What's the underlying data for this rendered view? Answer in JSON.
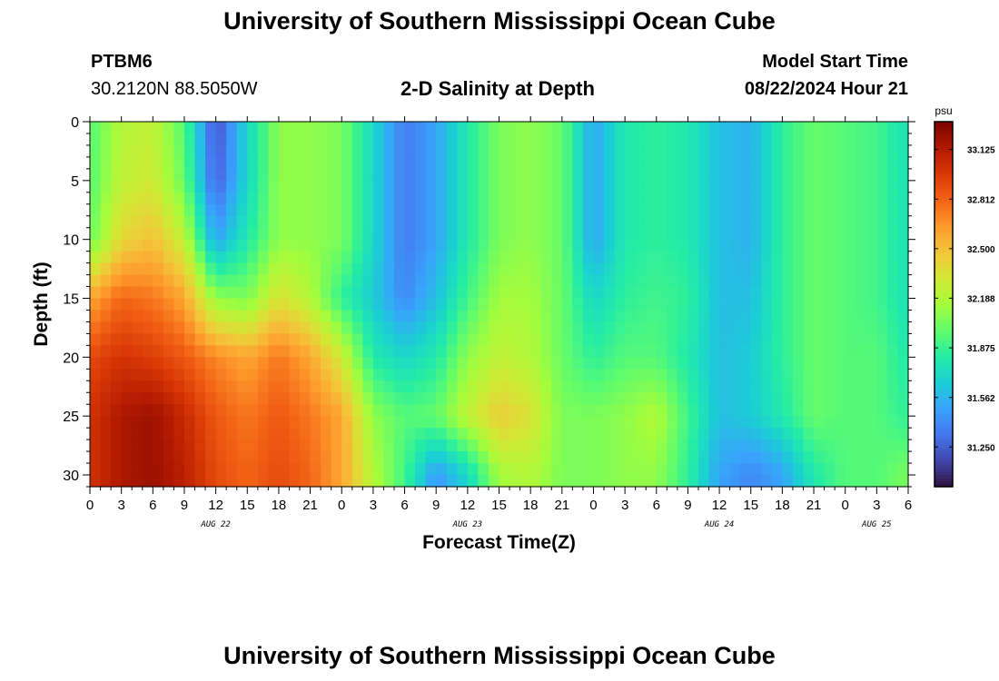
{
  "page": {
    "title_top": "University of Southern Mississippi Ocean Cube",
    "title_bottom": "University of Southern Mississippi Ocean Cube",
    "station_id": "PTBM6",
    "station_coords": "30.2120N  88.5050W",
    "plot_title": "2-D Salinity at Depth",
    "model_start_label": "Model Start Time",
    "model_start_value": "08/22/2024 Hour 21"
  },
  "chart_data": {
    "type": "heatmap",
    "title": "2-D Salinity at Depth",
    "xlabel": "Forecast Time(Z)",
    "ylabel": "Depth (ft)",
    "colorbar_unit": "psu",
    "x_range_hours_from_aug22_00z": [
      0,
      78
    ],
    "y_range_ft": [
      0,
      31
    ],
    "y_reversed": true,
    "y_ticks": [
      0,
      5,
      10,
      15,
      20,
      25,
      30
    ],
    "x_tick_labels": [
      "0",
      "3",
      "6",
      "9",
      "12",
      "15",
      "18",
      "21",
      "0",
      "3",
      "6",
      "9",
      "12",
      "15",
      "18",
      "21",
      "0",
      "3",
      "6",
      "9",
      "12",
      "15",
      "18",
      "21",
      "0",
      "3",
      "6"
    ],
    "date_labels": [
      {
        "text": "AUG 22",
        "at_hour": 12
      },
      {
        "text": "AUG 23",
        "at_hour": 36
      },
      {
        "text": "AUG 24",
        "at_hour": 60
      },
      {
        "text": "AUG 25",
        "at_hour": 75
      }
    ],
    "colorbar_range": [
      31.0,
      33.3
    ],
    "colorbar_ticks": [
      31.25,
      31.562,
      31.875,
      32.188,
      32.5,
      32.812,
      33.125
    ],
    "colorbar_tick_labels": [
      "31.250",
      "31.562",
      "31.875",
      "32.188",
      "32.500",
      "32.812",
      "33.125"
    ],
    "colormap": [
      "#30123b",
      "#4145ab",
      "#4675ed",
      "#39a2fc",
      "#1bcfd4",
      "#24eca6",
      "#61fc6c",
      "#a4fc3b",
      "#d1e834",
      "#f3c63a",
      "#fe9b2d",
      "#f36315",
      "#d93806",
      "#b11901",
      "#7a0402"
    ],
    "row_depths_ft": [
      0,
      5,
      10,
      15,
      20,
      25,
      30
    ],
    "column_hours": [
      0,
      3,
      6,
      9,
      12,
      15,
      18,
      21,
      24,
      27,
      30,
      33,
      36,
      39,
      42,
      45,
      48,
      51,
      54,
      57,
      60,
      63,
      66,
      69,
      72,
      75,
      78
    ],
    "salinity_psu": [
      [
        31.95,
        32.2,
        32.25,
        31.95,
        31.2,
        31.7,
        32.1,
        32.1,
        32.05,
        31.7,
        31.35,
        31.5,
        31.8,
        32.05,
        32.1,
        32.0,
        31.5,
        31.8,
        31.85,
        31.8,
        31.6,
        31.55,
        31.85,
        32.0,
        31.95,
        31.9,
        31.75
      ],
      [
        31.95,
        32.25,
        32.3,
        32.0,
        31.25,
        31.7,
        32.1,
        32.1,
        32.05,
        31.7,
        31.35,
        31.5,
        31.8,
        32.05,
        32.1,
        32.0,
        31.5,
        31.8,
        31.85,
        31.8,
        31.6,
        31.55,
        31.85,
        32.0,
        31.95,
        31.9,
        31.75
      ],
      [
        32.0,
        32.4,
        32.5,
        32.25,
        31.5,
        31.8,
        32.1,
        32.1,
        32.05,
        31.7,
        31.35,
        31.5,
        31.8,
        32.05,
        32.1,
        32.0,
        31.5,
        31.8,
        31.85,
        31.8,
        31.6,
        31.55,
        31.85,
        32.0,
        31.95,
        31.9,
        31.75
      ],
      [
        32.6,
        32.8,
        32.75,
        32.6,
        32.1,
        32.05,
        32.35,
        32.2,
        31.85,
        31.65,
        31.4,
        31.6,
        31.9,
        32.15,
        32.15,
        32.0,
        31.7,
        31.85,
        31.9,
        31.85,
        31.6,
        31.6,
        31.85,
        32.0,
        31.95,
        31.9,
        31.75
      ],
      [
        32.9,
        33.0,
        32.95,
        32.85,
        32.7,
        32.6,
        32.75,
        32.6,
        32.3,
        31.8,
        31.7,
        31.8,
        32.1,
        32.25,
        32.2,
        32.0,
        31.85,
        31.95,
        31.95,
        31.8,
        31.6,
        31.65,
        31.85,
        32.0,
        31.95,
        31.95,
        31.8
      ],
      [
        33.0,
        33.15,
        33.2,
        33.05,
        32.85,
        32.75,
        32.85,
        32.75,
        32.6,
        32.1,
        31.95,
        32.0,
        32.25,
        32.45,
        32.35,
        32.05,
        32.05,
        32.1,
        32.2,
        31.9,
        31.6,
        31.65,
        31.8,
        32.0,
        31.95,
        31.95,
        31.85
      ],
      [
        33.0,
        33.15,
        33.2,
        33.1,
        32.9,
        32.8,
        32.9,
        32.8,
        32.6,
        32.2,
        31.9,
        31.45,
        31.7,
        32.15,
        32.2,
        32.05,
        32.05,
        32.1,
        32.1,
        31.85,
        31.5,
        31.4,
        31.5,
        31.8,
        31.95,
        31.95,
        32.05
      ]
    ]
  }
}
